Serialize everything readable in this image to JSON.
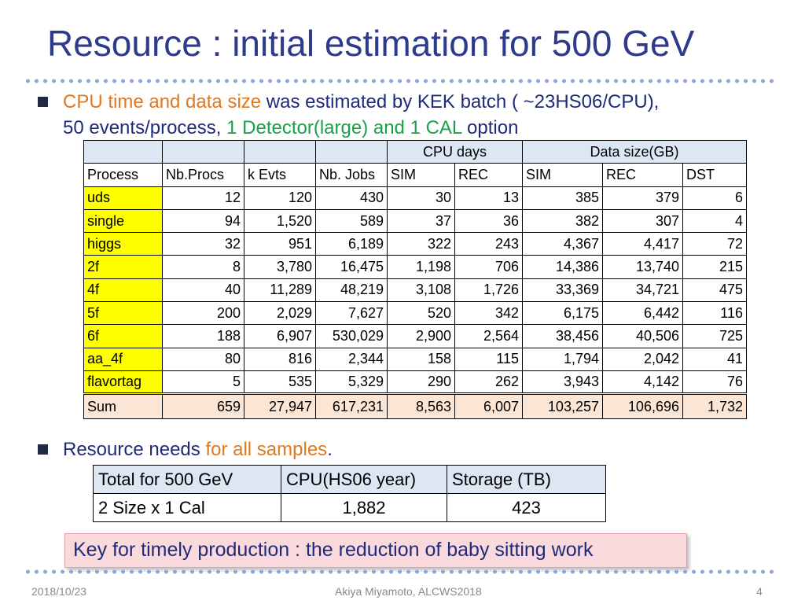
{
  "slide": {
    "title": "Resource : initial estimation for 500 GeV",
    "bullet1": {
      "part1": "CPU time and data size",
      "part2": " was estimated by KEK batch ( ~23HS06/CPU),",
      "part3": "50 events/process, ",
      "part4": "1 Detector(large) and 1 CAL",
      "part5": " option"
    },
    "bullet2": {
      "part1": "Resource needs ",
      "part2": "for all samples",
      "part3": "."
    },
    "key_box": "Key for timely production :  the reduction of baby sitting work",
    "footer": {
      "date": "2018/10/23",
      "author": "Akiya Miyamoto, ALCWS2018",
      "page": "4"
    }
  },
  "cpu_table": {
    "group_headers": {
      "cpu_days": "CPU days",
      "data_size": "Data size(GB)"
    },
    "columns": [
      "Process",
      "Nb.Procs",
      "k Evts",
      "Nb. Jobs",
      "SIM",
      "REC",
      "SIM",
      "REC",
      "DST"
    ],
    "rows": [
      [
        "uds",
        "12",
        "120",
        "430",
        "30",
        "13",
        "385",
        "379",
        "6"
      ],
      [
        "single",
        "94",
        "1,520",
        "589",
        "37",
        "36",
        "382",
        "307",
        "4"
      ],
      [
        "higgs",
        "32",
        "951",
        "6,189",
        "322",
        "243",
        "4,367",
        "4,417",
        "72"
      ],
      [
        "2f",
        "8",
        "3,780",
        "16,475",
        "1,198",
        "706",
        "14,386",
        "13,740",
        "215"
      ],
      [
        "4f",
        "40",
        "11,289",
        "48,219",
        "3,108",
        "1,726",
        "33,369",
        "34,721",
        "475"
      ],
      [
        "5f",
        "200",
        "2,029",
        "7,627",
        "520",
        "342",
        "6,175",
        "6,442",
        "116"
      ],
      [
        "6f",
        "188",
        "6,907",
        "530,029",
        "2,900",
        "2,564",
        "38,456",
        "40,506",
        "725"
      ],
      [
        "aa_4f",
        "80",
        "816",
        "2,344",
        "158",
        "115",
        "1,794",
        "2,042",
        "41"
      ],
      [
        "flavortag",
        "5",
        "535",
        "5,329",
        "290",
        "262",
        "3,943",
        "4,142",
        "76"
      ]
    ],
    "sum": [
      "Sum",
      "659",
      "27,947",
      "617,231",
      "8,563",
      "6,007",
      "103,257",
      "106,696",
      "1,732"
    ]
  },
  "resource_table": {
    "headers": [
      "Total for 500 GeV",
      "CPU(HS06 year)",
      "Storage (TB)"
    ],
    "row": [
      "2 Size x 1 Cal",
      "1,882",
      "423"
    ]
  }
}
